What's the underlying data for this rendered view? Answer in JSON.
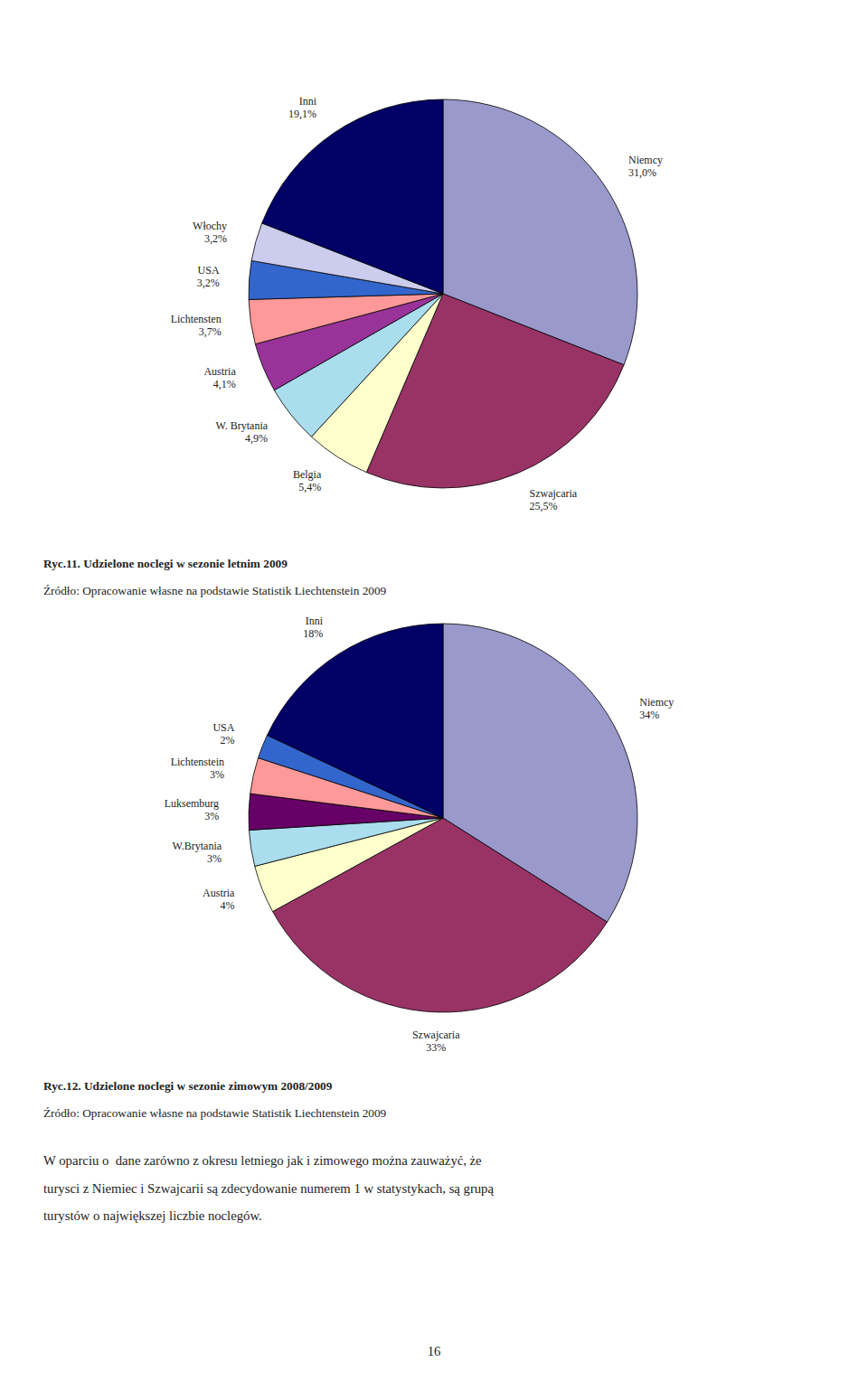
{
  "chart_data": [
    {
      "type": "pie",
      "title": "Ryc.11. Udzielone noclegi w sezonie letnim 2009",
      "subtitle": "Źródło: Opracowanie własne na podstawie Statistik Liechtenstein 2009",
      "categories": [
        "Niemcy",
        "Szwajcaria",
        "Belgia",
        "W. Brytania",
        "Austria",
        "Lichtensten",
        "USA",
        "Włochy",
        "Inni"
      ],
      "values": [
        31.0,
        25.5,
        5.4,
        4.9,
        4.1,
        3.7,
        3.2,
        3.2,
        19.1
      ],
      "value_labels": [
        "31,0%",
        "25,5%",
        "5,4%",
        "4,9%",
        "4,1%",
        "3,7%",
        "3,2%",
        "3,2%",
        "19,1%"
      ],
      "colors": [
        "#9999cc",
        "#993366",
        "#ffffcc",
        "#aaddee",
        "#993399",
        "#ff9999",
        "#3366cc",
        "#ccccee",
        "#000066"
      ],
      "data_labels": true
    },
    {
      "type": "pie",
      "title": "Ryc.12. Udzielone noclegi w sezonie zimowym 2008/2009",
      "subtitle": "Źródło: Opracowanie własne na podstawie Statistik Liechtenstein 2009",
      "categories": [
        "Niemcy",
        "Szwajcaria",
        "Austria",
        "W.Brytania",
        "Luksemburg",
        "Lichtenstein",
        "USA",
        "Inni"
      ],
      "values": [
        34,
        33,
        4,
        3,
        3,
        3,
        2,
        18
      ],
      "value_labels": [
        "34%",
        "33%",
        "4%",
        "3%",
        "3%",
        "3%",
        "2%",
        "18%"
      ],
      "colors": [
        "#9999cc",
        "#993366",
        "#ffffcc",
        "#aaddee",
        "#660066",
        "#ff9999",
        "#3366cc",
        "#000066"
      ],
      "data_labels": true
    }
  ],
  "paragraph_lines": [
    "W oparciu o  dane zarówno z okresu letniego jak i zimowego można zauważyć, że",
    "turysci z Niemiec i Szwajcarii są zdecydowanie numerem 1 w statystykach, są grupą",
    "turystów o największej liczbie noclegów."
  ],
  "page_number": "16"
}
